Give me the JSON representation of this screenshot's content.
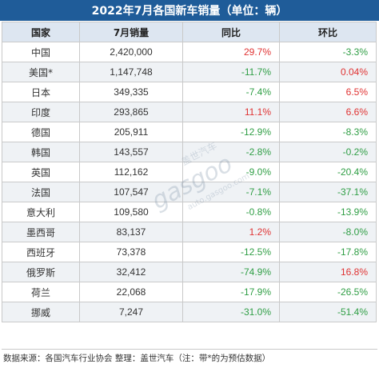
{
  "title": "2022年7月各国新车销量（单位：辆）",
  "headers": [
    "国家",
    "7月销量",
    "同比",
    "环比"
  ],
  "rows": [
    {
      "country": "中国",
      "sales": "2,420,000",
      "yoy": "29.7%",
      "yoy_trend": "up",
      "mom": "-3.3%",
      "mom_trend": "down"
    },
    {
      "country": "美国*",
      "sales": "1,147,748",
      "yoy": "-11.7%",
      "yoy_trend": "down",
      "mom": "0.04%",
      "mom_trend": "up"
    },
    {
      "country": "日本",
      "sales": "349,335",
      "yoy": "-7.4%",
      "yoy_trend": "down",
      "mom": "6.5%",
      "mom_trend": "up"
    },
    {
      "country": "印度",
      "sales": "293,865",
      "yoy": "11.1%",
      "yoy_trend": "up",
      "mom": "6.6%",
      "mom_trend": "up"
    },
    {
      "country": "德国",
      "sales": "205,911",
      "yoy": "-12.9%",
      "yoy_trend": "down",
      "mom": "-8.3%",
      "mom_trend": "down"
    },
    {
      "country": "韩国",
      "sales": "143,557",
      "yoy": "-2.8%",
      "yoy_trend": "down",
      "mom": "-0.2%",
      "mom_trend": "down"
    },
    {
      "country": "英国",
      "sales": "112,162",
      "yoy": "-9.0%",
      "yoy_trend": "down",
      "mom": "-20.4%",
      "mom_trend": "down"
    },
    {
      "country": "法国",
      "sales": "107,547",
      "yoy": "-7.1%",
      "yoy_trend": "down",
      "mom": "-37.1%",
      "mom_trend": "down"
    },
    {
      "country": "意大利",
      "sales": "109,580",
      "yoy": "-0.8%",
      "yoy_trend": "down",
      "mom": "-13.9%",
      "mom_trend": "down"
    },
    {
      "country": "墨西哥",
      "sales": "83,137",
      "yoy": "1.2%",
      "yoy_trend": "up",
      "mom": "-8.0%",
      "mom_trend": "down"
    },
    {
      "country": "西班牙",
      "sales": "73,378",
      "yoy": "-12.5%",
      "yoy_trend": "down",
      "mom": "-17.8%",
      "mom_trend": "down"
    },
    {
      "country": "俄罗斯",
      "sales": "32,412",
      "yoy": "-74.9%",
      "yoy_trend": "down",
      "mom": "16.8%",
      "mom_trend": "up"
    },
    {
      "country": "荷兰",
      "sales": "22,068",
      "yoy": "-17.9%",
      "yoy_trend": "down",
      "mom": "-26.5%",
      "mom_trend": "down"
    },
    {
      "country": "挪威",
      "sales": "7,247",
      "yoy": "-31.0%",
      "yoy_trend": "down",
      "mom": "-51.4%",
      "mom_trend": "down"
    }
  ],
  "footer": "数据来源：各国汽车行业协会 整理：盖世汽车（注：带*的为预估数据）",
  "watermark": {
    "brand": "gasgoo",
    "cn": "盖世汽车",
    "url": "auto.gasgoo.com"
  },
  "colors": {
    "header_bar": "#1f5c99",
    "header_row": "#dde6f1",
    "positive": "#e03232",
    "negative": "#2f9e45"
  }
}
